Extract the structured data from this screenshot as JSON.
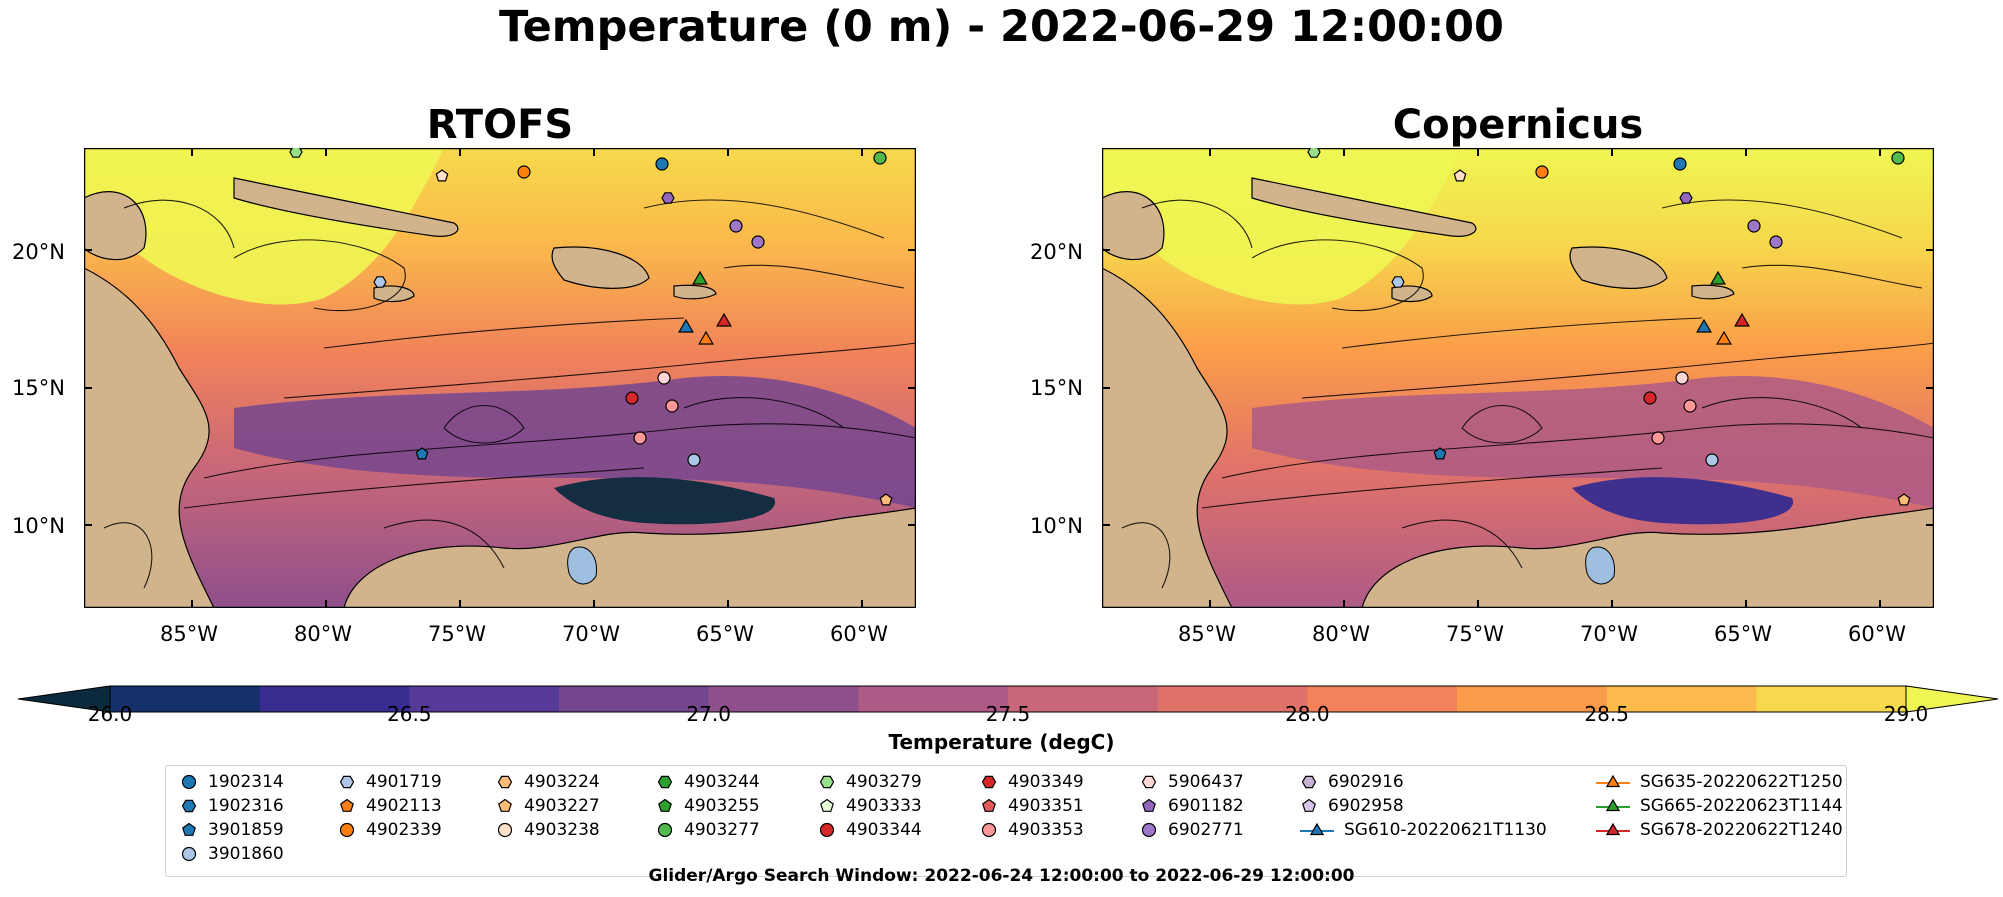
{
  "suptitle": "Temperature (0 m) - 2022-06-29 12:00:00",
  "panels": [
    {
      "title": "RTOFS"
    },
    {
      "title": "Copernicus"
    }
  ],
  "axes": {
    "lat_labels": [
      "20°N",
      "15°N",
      "10°N"
    ],
    "lon_labels": [
      "85°W",
      "80°W",
      "75°W",
      "70°W",
      "65°W",
      "60°W"
    ]
  },
  "colorbar": {
    "label": "Temperature (degC)",
    "ticks": [
      "26.0",
      "26.5",
      "27.0",
      "27.5",
      "28.0",
      "28.5",
      "29.0"
    ],
    "range": [
      26.0,
      29.0
    ],
    "colors": [
      "#0b2a3e",
      "#15306b",
      "#372c8f",
      "#553a98",
      "#74468f",
      "#8f4f8c",
      "#ad5a86",
      "#c86779",
      "#e0726a",
      "#f1825a",
      "#fb9b4a",
      "#fbba4b",
      "#f6d94c",
      "#eff653"
    ]
  },
  "legend": {
    "items": [
      {
        "label": "1902314",
        "marker": "circle",
        "color": "#1f77b4"
      },
      {
        "label": "1902316",
        "marker": "hexagon",
        "color": "#1f77b4"
      },
      {
        "label": "3901859",
        "marker": "pentagon",
        "color": "#1f77b4"
      },
      {
        "label": "3901860",
        "marker": "circle",
        "color": "#aec7e8"
      },
      {
        "label": "4901719",
        "marker": "hexagon",
        "color": "#aec7e8"
      },
      {
        "label": "4902113",
        "marker": "pentagon",
        "color": "#ff7f0e"
      },
      {
        "label": "4902339",
        "marker": "circle",
        "color": "#ff7f0e"
      },
      {
        "label": "4903224",
        "marker": "hexagon",
        "color": "#ffbb78"
      },
      {
        "label": "4903227",
        "marker": "pentagon",
        "color": "#ffbb78"
      },
      {
        "label": "4903238",
        "marker": "circle",
        "color": "#ffe0c8"
      },
      {
        "label": "4903244",
        "marker": "hexagon",
        "color": "#2ca02c"
      },
      {
        "label": "4903255",
        "marker": "pentagon",
        "color": "#2ca02c"
      },
      {
        "label": "4903277",
        "marker": "circle",
        "color": "#54b94c"
      },
      {
        "label": "4903279",
        "marker": "hexagon",
        "color": "#98df8a"
      },
      {
        "label": "4903333",
        "marker": "pentagon",
        "color": "#e6ffd9"
      },
      {
        "label": "4903344",
        "marker": "circle",
        "color": "#d62728"
      },
      {
        "label": "4903349",
        "marker": "hexagon",
        "color": "#d62728"
      },
      {
        "label": "4903351",
        "marker": "pentagon",
        "color": "#e05a5a"
      },
      {
        "label": "4903353",
        "marker": "circle",
        "color": "#ff9896"
      },
      {
        "label": "5906437",
        "marker": "hexagon",
        "color": "#ffd6d5"
      },
      {
        "label": "6901182",
        "marker": "pentagon",
        "color": "#9467bd"
      },
      {
        "label": "6902771",
        "marker": "circle",
        "color": "#9f77c8"
      },
      {
        "label": "6902916",
        "marker": "hexagon",
        "color": "#c5b0d5"
      },
      {
        "label": "6902958",
        "marker": "pentagon",
        "color": "#d8c4ea"
      },
      {
        "label": "SG610-20220621T1130",
        "marker": "triangle-line",
        "color": "#1f77b4"
      },
      {
        "label": "SG635-20220622T1250",
        "marker": "triangle-line",
        "color": "#ff7f0e"
      },
      {
        "label": "SG665-20220623T1144",
        "marker": "triangle-line",
        "color": "#2ca02c"
      },
      {
        "label": "SG678-20220622T1240",
        "marker": "triangle-line",
        "color": "#d62728"
      }
    ]
  },
  "caption": "Glider/Argo Search Window: 2022-06-24 12:00:00 to 2022-06-29 12:00:00"
}
